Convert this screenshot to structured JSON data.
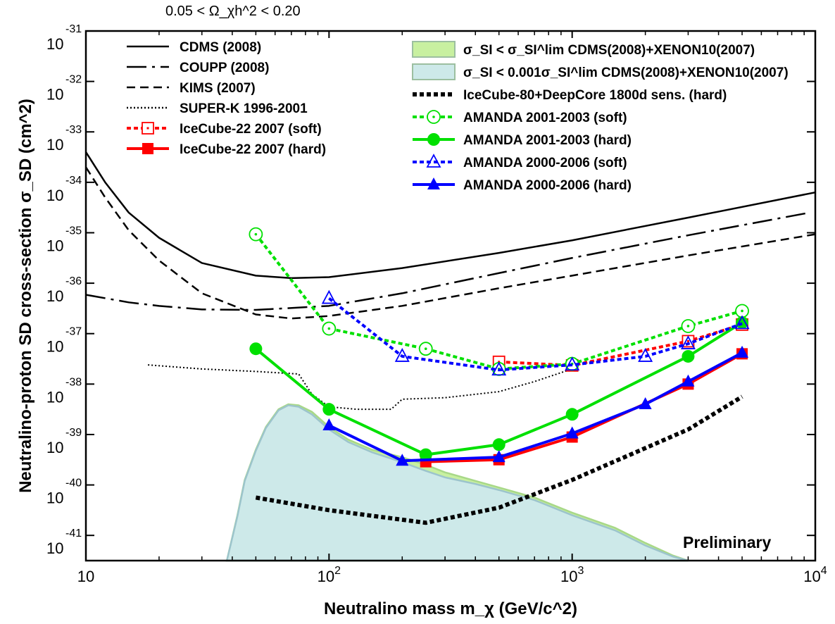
{
  "chart_data": {
    "type": "line",
    "title": "",
    "header_annotation": "0.05 < Ω_χh^2 < 0.20",
    "xlabel": "Neutralino mass m_χ (GeV/c^2)",
    "ylabel": "Neutralino-proton SD cross-section σ_SD (cm^2)",
    "x_scale": "log",
    "y_scale": "log",
    "xlim": [
      10,
      10000
    ],
    "ylim_exponent": [
      -41.5,
      -31
    ],
    "x_ticks": [
      {
        "value": 10,
        "base": "10",
        "exp": ""
      },
      {
        "value": 100,
        "base": "10",
        "exp": "2"
      },
      {
        "value": 1000,
        "base": "10",
        "exp": "3"
      },
      {
        "value": 10000,
        "base": "10",
        "exp": "4"
      }
    ],
    "y_ticks": [
      {
        "value": -31,
        "base": "10",
        "exp": "-31"
      },
      {
        "value": -32,
        "base": "10",
        "exp": "-32"
      },
      {
        "value": -33,
        "base": "10",
        "exp": "-33"
      },
      {
        "value": -34,
        "base": "10",
        "exp": "-34"
      },
      {
        "value": -35,
        "base": "10",
        "exp": "-35"
      },
      {
        "value": -36,
        "base": "10",
        "exp": "-36"
      },
      {
        "value": -37,
        "base": "10",
        "exp": "-37"
      },
      {
        "value": -38,
        "base": "10",
        "exp": "-38"
      },
      {
        "value": -39,
        "base": "10",
        "exp": "-39"
      },
      {
        "value": -40,
        "base": "10",
        "exp": "-40"
      },
      {
        "value": -41,
        "base": "10",
        "exp": "-41"
      }
    ],
    "annotation": "Preliminary",
    "legend_left": [
      {
        "label": "CDMS (2008)",
        "color": "#000000",
        "style": "solid"
      },
      {
        "label": "COUPP (2008)",
        "color": "#000000",
        "style": "longdash"
      },
      {
        "label": "KIMS (2007)",
        "color": "#000000",
        "style": "dash"
      },
      {
        "label": "SUPER-K 1996-2001",
        "color": "#000000",
        "style": "dot"
      },
      {
        "label": "IceCube-22 2007 (soft)",
        "color": "#ff0000",
        "style": "dot-open-square"
      },
      {
        "label": "IceCube-22 2007 (hard)",
        "color": "#ff0000",
        "style": "solid-filled-square"
      }
    ],
    "legend_right": [
      {
        "label": "σ_SI < σ_SI^lim CDMS(2008)+XENON10(2007)",
        "color": "#c8f0a0",
        "style": "box"
      },
      {
        "label": "σ_SI < 0.001σ_SI^lim CDMS(2008)+XENON10(2007)",
        "color": "#cde9e9",
        "style": "box"
      },
      {
        "label": "IceCube-80+DeepCore 1800d sens. (hard)",
        "color": "#000000",
        "style": "thickdot"
      },
      {
        "label": "AMANDA 2001-2003 (soft)",
        "color": "#00e000",
        "style": "dot-open-circle"
      },
      {
        "label": "AMANDA 2001-2003 (hard)",
        "color": "#00e000",
        "style": "solid-filled-circle"
      },
      {
        "label": "AMANDA 2000-2006 (soft)",
        "color": "#0000ff",
        "style": "dot-open-triangle"
      },
      {
        "label": "AMANDA 2000-2006 (hard)",
        "color": "#0000ff",
        "style": "solid-filled-triangle"
      }
    ],
    "series": [
      {
        "name": "CDMS (2008)",
        "color": "#000000",
        "x": [
          10,
          12,
          15,
          20,
          30,
          50,
          70,
          100,
          200,
          500,
          1000,
          3000,
          10000
        ],
        "y": [
          -33.4,
          -34.0,
          -34.6,
          -35.1,
          -35.6,
          -35.85,
          -35.9,
          -35.88,
          -35.7,
          -35.4,
          -35.15,
          -34.7,
          -34.2
        ]
      },
      {
        "name": "COUPP (2008)",
        "color": "#000000",
        "x": [
          10,
          15,
          20,
          30,
          50,
          100,
          200,
          500,
          1000,
          3000,
          9500
        ],
        "y": [
          -36.23,
          -36.38,
          -36.45,
          -36.52,
          -36.53,
          -36.45,
          -36.2,
          -35.8,
          -35.5,
          -35.05,
          -34.6
        ]
      },
      {
        "name": "KIMS (2007)",
        "color": "#000000",
        "x": [
          10,
          12,
          15,
          20,
          30,
          50,
          70,
          100,
          200,
          500,
          1000,
          3000,
          10000
        ],
        "y": [
          -33.7,
          -34.3,
          -34.95,
          -35.55,
          -36.2,
          -36.62,
          -36.7,
          -36.65,
          -36.45,
          -36.1,
          -35.85,
          -35.45,
          -35.03
        ]
      },
      {
        "name": "SUPER-K 1996-2001",
        "color": "#000000",
        "x": [
          18,
          30,
          50,
          75,
          85,
          100,
          130,
          180,
          200,
          300,
          500,
          700,
          1000
        ],
        "y": [
          -37.62,
          -37.7,
          -37.75,
          -37.8,
          -38.2,
          -38.45,
          -38.5,
          -38.5,
          -38.3,
          -38.27,
          -38.15,
          -37.95,
          -37.7
        ]
      },
      {
        "name": "IceCube-22 2007 (soft)",
        "color": "#ff0000",
        "x": [
          500,
          1000,
          3000,
          5000
        ],
        "y": [
          -37.56,
          -37.63,
          -37.15,
          -36.82
        ]
      },
      {
        "name": "IceCube-22 2007 (hard)",
        "color": "#ff0000",
        "x": [
          250,
          500,
          1000,
          3000,
          5000
        ],
        "y": [
          -39.54,
          -39.5,
          -39.05,
          -38.0,
          -37.4
        ]
      },
      {
        "name": "IceCube-80+DeepCore 1800d sens. (hard)",
        "color": "#000000",
        "x": [
          50,
          100,
          250,
          500,
          1000,
          3000,
          5000
        ],
        "y": [
          -40.25,
          -40.5,
          -40.75,
          -40.45,
          -39.9,
          -38.9,
          -38.25
        ]
      },
      {
        "name": "AMANDA 2001-2003 (soft)",
        "color": "#00e000",
        "x": [
          50,
          100,
          250,
          500,
          1000,
          3000,
          5000
        ],
        "y": [
          -35.03,
          -36.9,
          -37.3,
          -37.7,
          -37.6,
          -36.85,
          -36.55
        ]
      },
      {
        "name": "AMANDA 2001-2003 (hard)",
        "color": "#00e000",
        "x": [
          50,
          100,
          250,
          500,
          1000,
          3000,
          5000
        ],
        "y": [
          -37.3,
          -38.5,
          -39.4,
          -39.2,
          -38.6,
          -37.45,
          -36.78
        ]
      },
      {
        "name": "AMANDA 2000-2006 (soft)",
        "color": "#0000ff",
        "x": [
          100,
          200,
          500,
          1000,
          2000,
          3000,
          5000
        ],
        "y": [
          -36.3,
          -37.45,
          -37.72,
          -37.62,
          -37.45,
          -37.2,
          -36.8
        ]
      },
      {
        "name": "AMANDA 2000-2006 (hard)",
        "color": "#0000ff",
        "x": [
          100,
          200,
          500,
          1000,
          2000,
          3000,
          5000
        ],
        "y": [
          -38.82,
          -39.52,
          -39.45,
          -38.98,
          -38.4,
          -37.95,
          -37.38
        ]
      }
    ],
    "regions": [
      {
        "name": "σ_SI < σ_SI^lim CDMS(2008)+XENON10(2007)",
        "color": "#c8f0a0",
        "edge": "#a8d888",
        "x": [
          38,
          42,
          45,
          50,
          55,
          62,
          68,
          75,
          85,
          100,
          120,
          150,
          200,
          250,
          300,
          400,
          500,
          700,
          1000,
          1500,
          2000,
          2600,
          3000
        ],
        "y": [
          -41.5,
          -40.6,
          -39.9,
          -39.3,
          -38.85,
          -38.5,
          -38.4,
          -38.42,
          -38.55,
          -38.85,
          -39.1,
          -39.3,
          -39.45,
          -39.6,
          -39.75,
          -39.92,
          -40.05,
          -40.25,
          -40.55,
          -40.85,
          -41.15,
          -41.4,
          -41.5
        ]
      },
      {
        "name": "σ_SI < 0.001σ_SI^lim CDMS(2008)+XENON10(2007)",
        "color": "#cde9e9",
        "edge": "#9cc4cc",
        "x": [
          38,
          42,
          45,
          50,
          55,
          62,
          68,
          75,
          85,
          100,
          120,
          150,
          200,
          250,
          300,
          400,
          500,
          700,
          1000,
          1500,
          2000,
          2600,
          3000
        ],
        "y": [
          -41.5,
          -40.62,
          -39.92,
          -39.32,
          -38.87,
          -38.52,
          -38.42,
          -38.45,
          -38.6,
          -38.9,
          -39.15,
          -39.35,
          -39.55,
          -39.72,
          -39.85,
          -39.98,
          -40.1,
          -40.3,
          -40.6,
          -40.9,
          -41.2,
          -41.42,
          -41.5
        ]
      }
    ]
  }
}
